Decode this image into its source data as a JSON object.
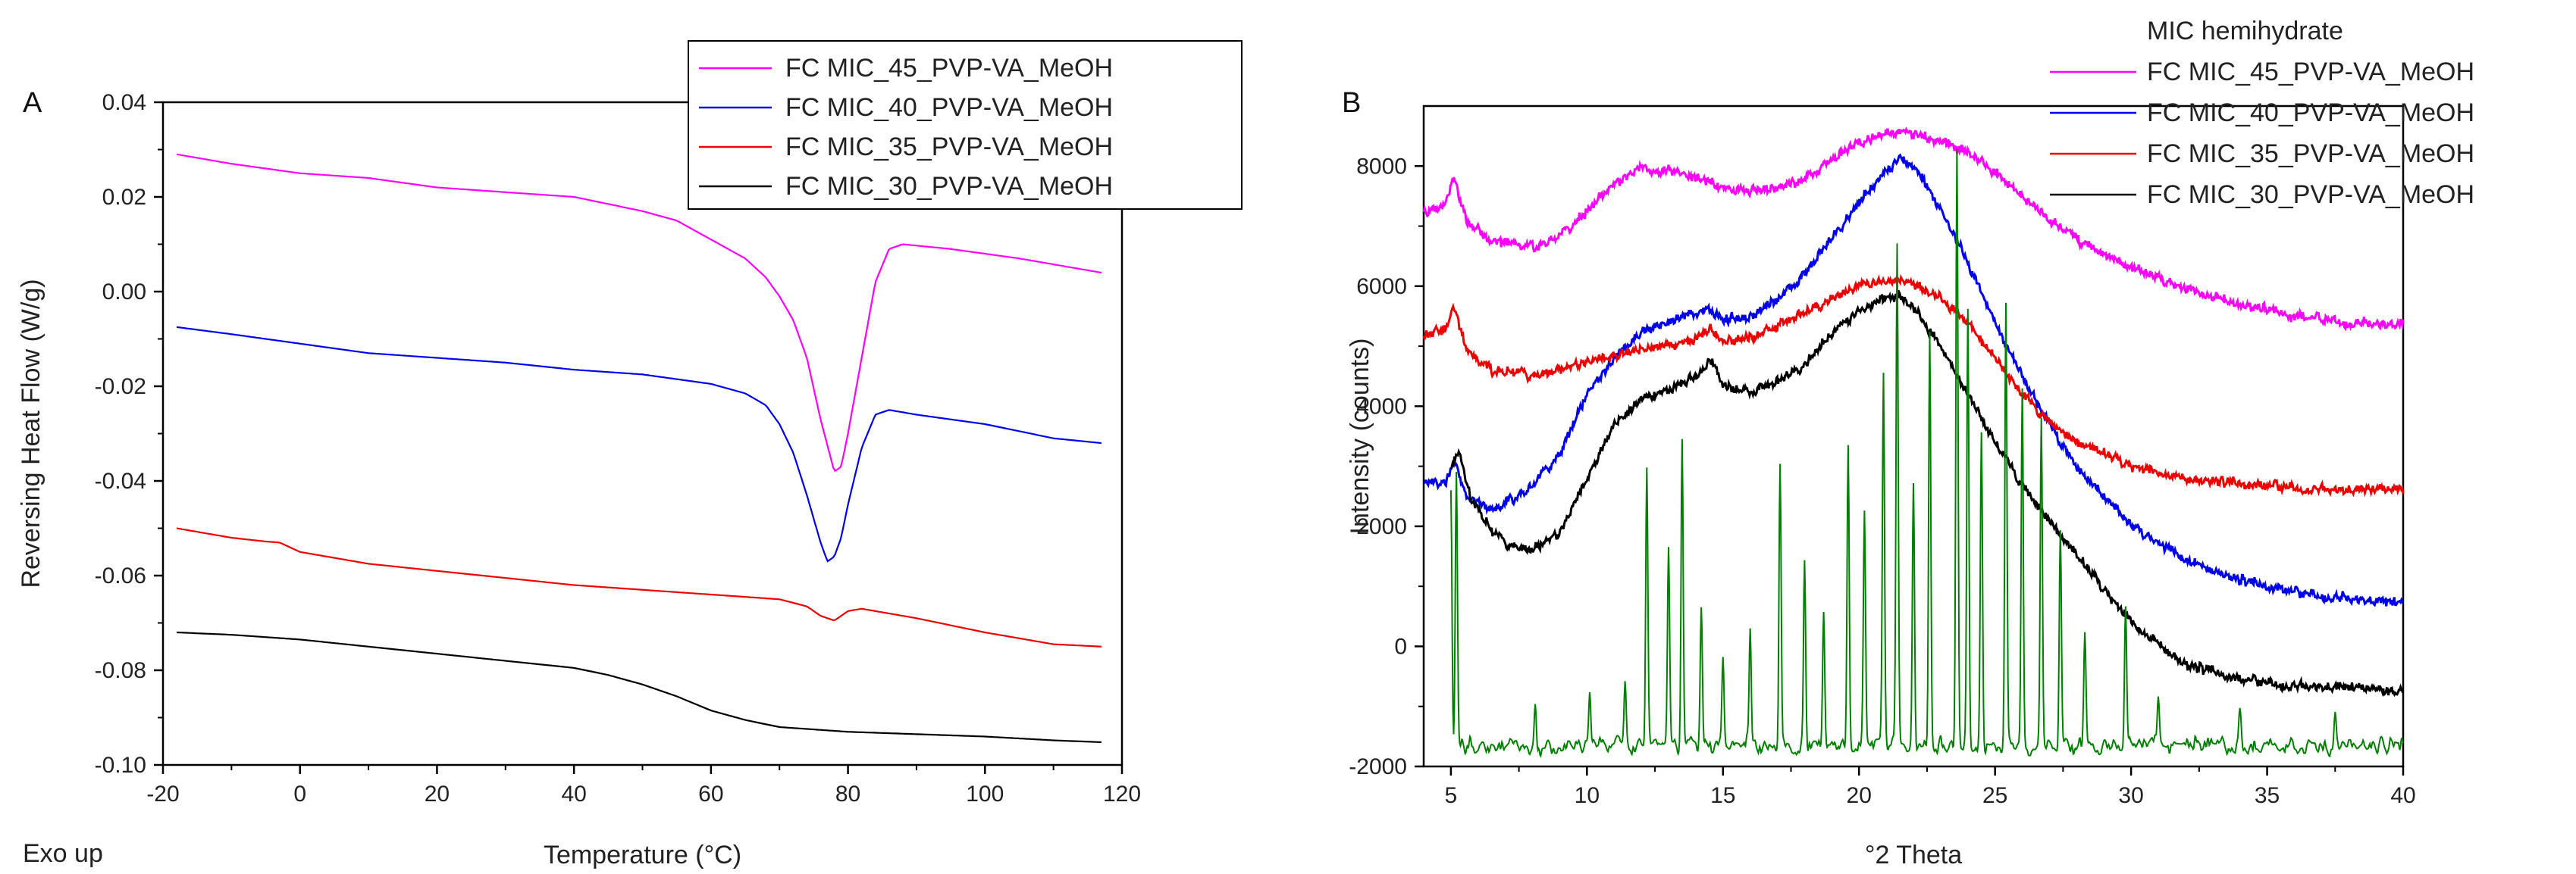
{
  "chart_data": [
    {
      "panel": "A",
      "type": "line",
      "xlabel": "Temperature (°C)",
      "ylabel": "Reversing Heat Flow (W/g)",
      "corner_note": "Exo up",
      "xlim": [
        -20,
        120
      ],
      "ylim": [
        -0.1,
        0.04
      ],
      "xticks": [
        "-20",
        "0",
        "20",
        "40",
        "60",
        "80",
        "100",
        "120"
      ],
      "yticks": [
        "-0.10",
        "-0.08",
        "-0.06",
        "-0.04",
        "-0.02",
        "0.00",
        "0.02",
        "0.04"
      ],
      "legend_position": "top-right",
      "series": [
        {
          "name": "FC MIC_45_PVP-VA_MeOH",
          "color": "#ff00ff",
          "x": [
            -18,
            -10,
            0,
            10,
            20,
            30,
            40,
            50,
            55,
            60,
            65,
            68,
            70,
            72,
            74,
            76,
            78,
            79,
            80,
            82,
            84,
            86,
            88,
            95,
            105,
            117
          ],
          "y": [
            0.029,
            0.027,
            0.025,
            0.024,
            0.022,
            0.021,
            0.02,
            0.017,
            0.015,
            0.011,
            0.007,
            0.003,
            -0.001,
            -0.006,
            -0.014,
            -0.027,
            -0.038,
            -0.037,
            -0.03,
            -0.014,
            0.002,
            0.009,
            0.01,
            0.009,
            0.007,
            0.004
          ]
        },
        {
          "name": "FC MIC_40_PVP-VA_MeOH",
          "color": "#0000ee",
          "x": [
            -18,
            -10,
            0,
            10,
            20,
            30,
            40,
            50,
            60,
            65,
            68,
            70,
            72,
            74,
            76,
            77,
            78,
            79,
            80,
            82,
            84,
            86,
            90,
            100,
            110,
            117
          ],
          "y": [
            -0.0075,
            -0.009,
            -0.011,
            -0.013,
            -0.014,
            -0.015,
            -0.0165,
            -0.0175,
            -0.0195,
            -0.0215,
            -0.024,
            -0.028,
            -0.034,
            -0.043,
            -0.053,
            -0.057,
            -0.056,
            -0.052,
            -0.045,
            -0.033,
            -0.026,
            -0.025,
            -0.026,
            -0.028,
            -0.031,
            -0.032
          ]
        },
        {
          "name": "FC MIC_35_PVP-VA_MeOH",
          "color": "#ee0000",
          "x": [
            -18,
            -10,
            -5,
            -3,
            0,
            10,
            20,
            30,
            40,
            50,
            60,
            70,
            74,
            76,
            78,
            80,
            82,
            84,
            90,
            100,
            110,
            117
          ],
          "y": [
            -0.05,
            -0.052,
            -0.0528,
            -0.053,
            -0.055,
            -0.0575,
            -0.059,
            -0.0605,
            -0.062,
            -0.063,
            -0.064,
            -0.065,
            -0.0665,
            -0.0685,
            -0.0695,
            -0.0675,
            -0.067,
            -0.0675,
            -0.069,
            -0.072,
            -0.0745,
            -0.075
          ]
        },
        {
          "name": "FC MIC_30_PVP-VA_MeOH",
          "color": "#000000",
          "x": [
            -18,
            -10,
            0,
            10,
            20,
            30,
            40,
            45,
            50,
            55,
            60,
            65,
            70,
            75,
            80,
            90,
            100,
            110,
            117
          ],
          "y": [
            -0.072,
            -0.0725,
            -0.0735,
            -0.075,
            -0.0765,
            -0.078,
            -0.0795,
            -0.081,
            -0.083,
            -0.0855,
            -0.0885,
            -0.0905,
            -0.092,
            -0.0925,
            -0.093,
            -0.0935,
            -0.094,
            -0.0948,
            -0.0952
          ]
        }
      ]
    },
    {
      "panel": "B",
      "type": "line",
      "xlabel": "°2 Theta",
      "ylabel": "Intensity (counts)",
      "xlim": [
        4,
        40
      ],
      "ylim": [
        -2000,
        9000
      ],
      "xticks": [
        "5",
        "10",
        "15",
        "20",
        "25",
        "30",
        "35",
        "40"
      ],
      "yticks": [
        "-2000",
        "0",
        "2000",
        "4000",
        "6000",
        "8000"
      ],
      "legend_position": "top-right",
      "series": [
        {
          "name": "FC MIC_45_PVP-VA_MeOH",
          "color": "#ff00ff",
          "x": [
            4,
            4.8,
            5.1,
            5.6,
            6.5,
            8,
            9,
            10,
            11,
            12,
            12.5,
            13,
            14,
            15,
            16,
            17,
            18,
            19,
            20,
            21,
            22,
            23,
            24,
            25,
            26,
            27,
            28,
            30,
            32,
            34,
            36,
            38,
            40
          ],
          "y": [
            7250,
            7350,
            7800,
            7100,
            6750,
            6650,
            6800,
            7250,
            7700,
            8000,
            7900,
            7950,
            7800,
            7650,
            7600,
            7650,
            7800,
            8100,
            8400,
            8550,
            8550,
            8400,
            8250,
            7900,
            7500,
            7100,
            6800,
            6300,
            5950,
            5700,
            5500,
            5400,
            5350
          ]
        },
        {
          "name": "FC MIC_40_PVP-VA_MeOH",
          "color": "#0000ee",
          "x": [
            4,
            4.8,
            5.1,
            5.6,
            6.5,
            8,
            9,
            10,
            11,
            12,
            13,
            14,
            14.5,
            15,
            16,
            17,
            18,
            19,
            20,
            21,
            21.5,
            22,
            23,
            24,
            25,
            26,
            27,
            28,
            30,
            32,
            34,
            36,
            38,
            40
          ],
          "y": [
            2700,
            2750,
            3100,
            2500,
            2250,
            2650,
            3200,
            4200,
            4800,
            5250,
            5400,
            5550,
            5650,
            5450,
            5500,
            5800,
            6200,
            6800,
            7400,
            7900,
            8150,
            8000,
            7300,
            6400,
            5400,
            4500,
            3700,
            3000,
            2000,
            1450,
            1100,
            900,
            800,
            700
          ]
        },
        {
          "name": "FC MIC_35_PVP-VA_MeOH",
          "color": "#ee0000",
          "x": [
            4,
            4.8,
            5.1,
            5.6,
            6.5,
            8,
            9,
            10,
            11,
            12,
            13,
            14,
            14.5,
            15,
            16,
            17,
            18,
            19,
            20,
            21,
            22,
            23,
            24,
            25,
            26,
            27,
            28,
            30,
            32,
            34,
            36,
            38,
            40
          ],
          "y": [
            5200,
            5300,
            5650,
            4900,
            4600,
            4500,
            4600,
            4750,
            4850,
            4950,
            5000,
            5150,
            5300,
            5100,
            5150,
            5350,
            5550,
            5800,
            6000,
            6100,
            6050,
            5800,
            5400,
            4800,
            4200,
            3750,
            3400,
            3000,
            2800,
            2700,
            2650,
            2600,
            2600
          ]
        },
        {
          "name": "FC MIC_30_PVP-VA_MeOH",
          "color": "#000000",
          "x": [
            5,
            5.3,
            5.6,
            6.5,
            7,
            8,
            9,
            10,
            11,
            12,
            13,
            14,
            14.6,
            15,
            16,
            17,
            18,
            19,
            20,
            21,
            21.5,
            22,
            23,
            24,
            25,
            26,
            27,
            28,
            30,
            32,
            34,
            36,
            38,
            40
          ],
          "y": [
            2950,
            3300,
            2600,
            1900,
            1700,
            1600,
            1900,
            2800,
            3700,
            4100,
            4300,
            4500,
            4800,
            4350,
            4250,
            4400,
            4700,
            5200,
            5600,
            5800,
            5850,
            5650,
            5000,
            4200,
            3400,
            2700,
            2100,
            1500,
            400,
            -300,
            -550,
            -650,
            -700,
            -750
          ]
        },
        {
          "name": "MIC hemihydrate",
          "color": "#008000",
          "x": [
            5.0,
            5.2,
            8.1,
            10.1,
            11.4,
            12.2,
            13.0,
            13.5,
            14.2,
            15.0,
            16.0,
            17.1,
            18.0,
            18.7,
            19.6,
            20.2,
            20.9,
            21.4,
            22.0,
            22.6,
            23.6,
            24.0,
            24.5,
            25.4,
            26.0,
            26.7,
            27.4,
            28.3,
            29.8,
            31.0,
            34.0,
            37.5
          ],
          "y": [
            2600,
            2900,
            -950,
            -850,
            -700,
            3000,
            1500,
            3600,
            700,
            -200,
            300,
            3000,
            1400,
            700,
            3400,
            2200,
            4500,
            6600,
            2800,
            5200,
            8300,
            5700,
            3500,
            5800,
            4300,
            3800,
            1900,
            200,
            700,
            -900,
            -1000,
            -1100
          ]
        }
      ]
    }
  ]
}
